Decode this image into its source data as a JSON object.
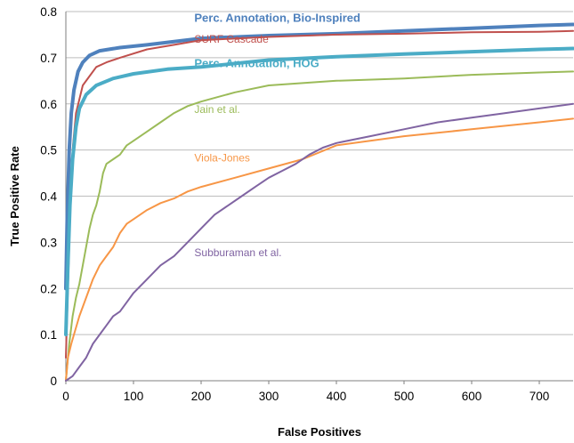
{
  "chart_data": {
    "type": "line",
    "title": "",
    "xlabel": "False Positives",
    "ylabel": "True Positive Rate",
    "xlim": [
      0,
      750
    ],
    "ylim": [
      0,
      0.8
    ],
    "x_ticks": [
      0,
      100,
      200,
      300,
      400,
      500,
      600,
      700
    ],
    "y_ticks": [
      0,
      0.1,
      0.2,
      0.3,
      0.4,
      0.5,
      0.6,
      0.7,
      0.8
    ],
    "grid": "horizontal",
    "legend": "inline labels",
    "series": [
      {
        "name": "Perc. Annotation, Bio-Inspired",
        "color": "#4f81bd",
        "points": [
          [
            0,
            0.2
          ],
          [
            2,
            0.35
          ],
          [
            5,
            0.5
          ],
          [
            8,
            0.58
          ],
          [
            12,
            0.63
          ],
          [
            18,
            0.67
          ],
          [
            25,
            0.69
          ],
          [
            35,
            0.705
          ],
          [
            50,
            0.715
          ],
          [
            80,
            0.722
          ],
          [
            120,
            0.728
          ],
          [
            200,
            0.742
          ],
          [
            300,
            0.748
          ],
          [
            400,
            0.752
          ],
          [
            500,
            0.758
          ],
          [
            600,
            0.764
          ],
          [
            700,
            0.77
          ],
          [
            750,
            0.772
          ]
        ]
      },
      {
        "name": "SURF Cascade",
        "color": "#c0504d",
        "points": [
          [
            0,
            0.05
          ],
          [
            3,
            0.2
          ],
          [
            6,
            0.35
          ],
          [
            10,
            0.5
          ],
          [
            15,
            0.58
          ],
          [
            20,
            0.61
          ],
          [
            25,
            0.64
          ],
          [
            35,
            0.66
          ],
          [
            45,
            0.68
          ],
          [
            60,
            0.69
          ],
          [
            80,
            0.7
          ],
          [
            120,
            0.718
          ],
          [
            160,
            0.728
          ],
          [
            200,
            0.738
          ],
          [
            300,
            0.745
          ],
          [
            400,
            0.75
          ],
          [
            500,
            0.752
          ],
          [
            600,
            0.755
          ],
          [
            700,
            0.756
          ],
          [
            750,
            0.758
          ]
        ]
      },
      {
        "name": "Perc. Annotation, HOG",
        "color": "#4bacc6",
        "points": [
          [
            0,
            0.1
          ],
          [
            3,
            0.25
          ],
          [
            6,
            0.38
          ],
          [
            10,
            0.48
          ],
          [
            15,
            0.55
          ],
          [
            20,
            0.59
          ],
          [
            30,
            0.62
          ],
          [
            45,
            0.64
          ],
          [
            70,
            0.655
          ],
          [
            100,
            0.665
          ],
          [
            150,
            0.675
          ],
          [
            200,
            0.68
          ],
          [
            300,
            0.695
          ],
          [
            400,
            0.702
          ],
          [
            500,
            0.708
          ],
          [
            600,
            0.713
          ],
          [
            700,
            0.718
          ],
          [
            750,
            0.72
          ]
        ]
      },
      {
        "name": "Jain et al.",
        "color": "#9bbb59",
        "points": [
          [
            0,
            0.0
          ],
          [
            5,
            0.08
          ],
          [
            10,
            0.14
          ],
          [
            15,
            0.18
          ],
          [
            20,
            0.21
          ],
          [
            25,
            0.25
          ],
          [
            30,
            0.29
          ],
          [
            35,
            0.33
          ],
          [
            40,
            0.36
          ],
          [
            45,
            0.38
          ],
          [
            50,
            0.41
          ],
          [
            55,
            0.45
          ],
          [
            60,
            0.47
          ],
          [
            70,
            0.48
          ],
          [
            80,
            0.49
          ],
          [
            90,
            0.51
          ],
          [
            100,
            0.52
          ],
          [
            120,
            0.54
          ],
          [
            140,
            0.56
          ],
          [
            160,
            0.58
          ],
          [
            180,
            0.595
          ],
          [
            200,
            0.605
          ],
          [
            250,
            0.625
          ],
          [
            300,
            0.64
          ],
          [
            350,
            0.645
          ],
          [
            400,
            0.65
          ],
          [
            500,
            0.655
          ],
          [
            600,
            0.663
          ],
          [
            700,
            0.668
          ],
          [
            750,
            0.67
          ]
        ]
      },
      {
        "name": "Viola-Jones",
        "color": "#f79646",
        "points": [
          [
            0,
            0.0
          ],
          [
            3,
            0.05
          ],
          [
            8,
            0.08
          ],
          [
            12,
            0.1
          ],
          [
            20,
            0.14
          ],
          [
            30,
            0.18
          ],
          [
            40,
            0.22
          ],
          [
            50,
            0.25
          ],
          [
            60,
            0.27
          ],
          [
            70,
            0.29
          ],
          [
            80,
            0.32
          ],
          [
            90,
            0.34
          ],
          [
            100,
            0.35
          ],
          [
            120,
            0.37
          ],
          [
            140,
            0.385
          ],
          [
            160,
            0.395
          ],
          [
            180,
            0.41
          ],
          [
            200,
            0.42
          ],
          [
            250,
            0.44
          ],
          [
            300,
            0.46
          ],
          [
            350,
            0.48
          ],
          [
            400,
            0.51
          ],
          [
            450,
            0.52
          ],
          [
            500,
            0.53
          ],
          [
            600,
            0.545
          ],
          [
            700,
            0.56
          ],
          [
            750,
            0.568
          ]
        ]
      },
      {
        "name": "Subburaman et al.",
        "color": "#8064a2",
        "points": [
          [
            0,
            0.0
          ],
          [
            10,
            0.01
          ],
          [
            20,
            0.03
          ],
          [
            30,
            0.05
          ],
          [
            40,
            0.08
          ],
          [
            50,
            0.1
          ],
          [
            60,
            0.12
          ],
          [
            70,
            0.14
          ],
          [
            80,
            0.15
          ],
          [
            90,
            0.17
          ],
          [
            100,
            0.19
          ],
          [
            120,
            0.22
          ],
          [
            140,
            0.25
          ],
          [
            160,
            0.27
          ],
          [
            180,
            0.3
          ],
          [
            200,
            0.33
          ],
          [
            220,
            0.36
          ],
          [
            240,
            0.38
          ],
          [
            260,
            0.4
          ],
          [
            280,
            0.42
          ],
          [
            300,
            0.44
          ],
          [
            320,
            0.455
          ],
          [
            340,
            0.47
          ],
          [
            360,
            0.49
          ],
          [
            380,
            0.505
          ],
          [
            400,
            0.515
          ],
          [
            450,
            0.53
          ],
          [
            500,
            0.545
          ],
          [
            550,
            0.56
          ],
          [
            600,
            0.57
          ],
          [
            650,
            0.58
          ],
          [
            700,
            0.59
          ],
          [
            750,
            0.6
          ]
        ]
      }
    ],
    "labels": [
      {
        "text": "Perc. Annotation, Bio-Inspired",
        "x": 190,
        "y": 0.778,
        "bold": true,
        "color": "#4f81bd"
      },
      {
        "text": "SURF Cascade",
        "x": 190,
        "y": 0.733,
        "bold": false,
        "color": "#c0504d"
      },
      {
        "text": "Perc. Annotation, HOG",
        "x": 190,
        "y": 0.68,
        "bold": true,
        "color": "#4bacc6"
      },
      {
        "text": "Jain et al.",
        "x": 190,
        "y": 0.58,
        "bold": false,
        "color": "#9bbb59"
      },
      {
        "text": "Viola-Jones",
        "x": 190,
        "y": 0.475,
        "bold": false,
        "color": "#f79646"
      },
      {
        "text": "Subburaman et al.",
        "x": 190,
        "y": 0.27,
        "bold": false,
        "color": "#8064a2"
      }
    ]
  }
}
